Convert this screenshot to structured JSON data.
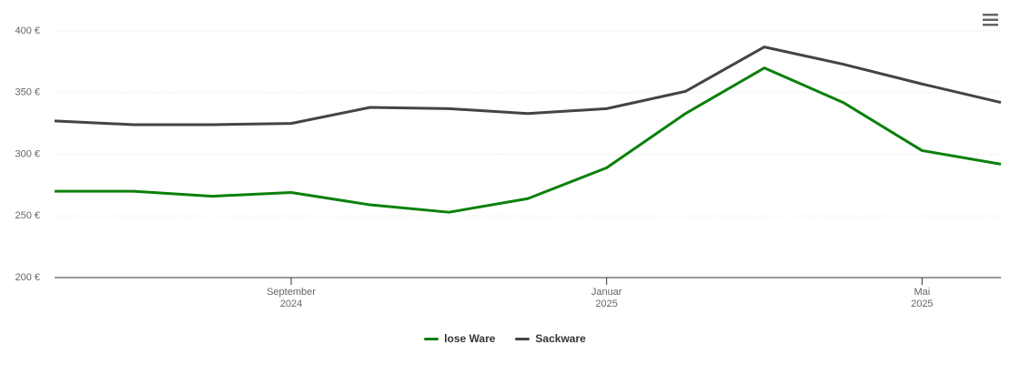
{
  "chart_data": {
    "type": "line",
    "x": [
      "2024-06",
      "2024-07",
      "2024-08",
      "2024-09",
      "2024-10",
      "2024-11",
      "2024-12",
      "2025-01",
      "2025-02",
      "2025-03",
      "2025-04",
      "2025-05",
      "2025-06"
    ],
    "series": [
      {
        "name": "lose Ware",
        "color": "#0b800b",
        "values": [
          270,
          270,
          266,
          269,
          259,
          253,
          264,
          289,
          333,
          370,
          342,
          303,
          292
        ]
      },
      {
        "name": "Sackware",
        "color": "#434348",
        "values": [
          327,
          324,
          324,
          325,
          338,
          337,
          333,
          337,
          351,
          387,
          373,
          357,
          342
        ]
      }
    ],
    "xlim": [
      "2024-06",
      "2025-06"
    ],
    "xticks": [
      {
        "value": "2024-09",
        "label": "September\n2024"
      },
      {
        "value": "2025-01",
        "label": "Januar\n2025"
      },
      {
        "value": "2025-05",
        "label": "Mai\n2025"
      }
    ],
    "ylim": [
      200,
      400
    ],
    "yticks": [
      {
        "value": 200,
        "label": "200 €"
      },
      {
        "value": 250,
        "label": "250 €"
      },
      {
        "value": 300,
        "label": "300 €"
      },
      {
        "value": 350,
        "label": "350 €"
      },
      {
        "value": 400,
        "label": "400 €"
      }
    ],
    "grid": true,
    "legend": "bottom"
  }
}
